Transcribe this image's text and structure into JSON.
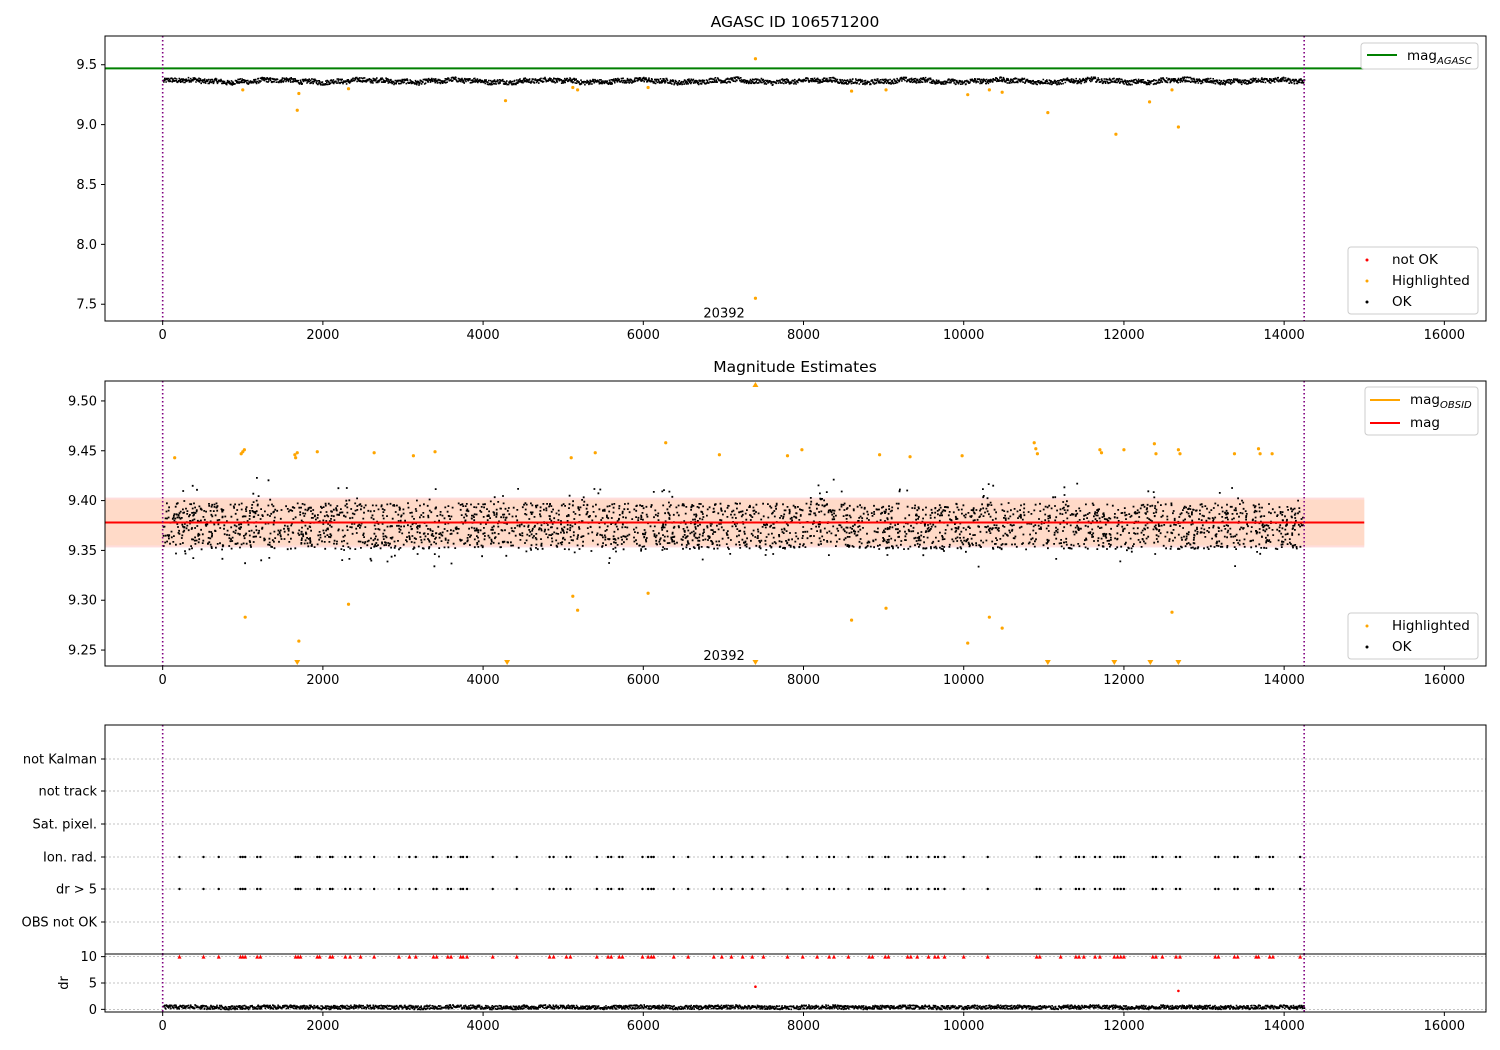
{
  "figure": {
    "panels": [
      "AGASC ID 106571200",
      "Magnitude Estimates",
      "",
      ""
    ]
  },
  "colors": {
    "ok": "#000000",
    "highlighted": "#ffa500",
    "not_ok": "#ff0000",
    "mag_agasc_line": "#008000",
    "mag_line": "#ff0000",
    "mag_obsid_line": "#ffa500",
    "band_outer": "#ffdddd",
    "band_inner": "#ffdac8",
    "obs_boundary": "#800080"
  },
  "chart_data": [
    {
      "type": "scatter",
      "title": "AGASC ID 106571200",
      "xlabel": "",
      "ylabel": "",
      "xlim": [
        -720,
        16520
      ],
      "ylim": [
        7.36,
        9.74
      ],
      "x_ticks": [
        "0",
        "2000",
        "4000",
        "6000",
        "8000",
        "10000",
        "12000",
        "14000",
        "16000"
      ],
      "y_ticks": [
        "7.5",
        "8.0",
        "8.5",
        "9.0",
        "9.5"
      ],
      "hlines": [
        {
          "name": "mag_AGASC",
          "y": 9.47,
          "x_range": [
            -720,
            15000
          ]
        }
      ],
      "obs_boundaries": [
        0,
        14250
      ],
      "annotations": [
        {
          "text": "20392",
          "x": 7150,
          "y": 7.43
        }
      ],
      "ok_band": {
        "center": 9.37,
        "half_width": 0.028,
        "x_range": [
          0,
          14250
        ]
      },
      "highlighted_points": {
        "x": [
          1000,
          1680,
          1700,
          2320,
          4280,
          5120,
          5180,
          6060,
          7400,
          7400,
          8600,
          9030,
          10050,
          10320,
          10480,
          11050,
          11900,
          12320,
          12600,
          12680
        ],
        "y": [
          9.29,
          9.12,
          9.26,
          9.3,
          9.2,
          9.31,
          9.29,
          9.31,
          9.55,
          7.55,
          9.28,
          9.29,
          9.25,
          9.29,
          9.27,
          9.1,
          8.92,
          9.19,
          9.29,
          8.98
        ]
      },
      "legend": {
        "position": "top-right + lower-right",
        "entries": [
          "mag_AGASC",
          "not OK",
          "Highlighted",
          "OK"
        ]
      },
      "grid": false
    },
    {
      "type": "scatter",
      "title": "Magnitude Estimates",
      "xlabel": "",
      "ylabel": "",
      "xlim": [
        -720,
        16520
      ],
      "ylim": [
        9.234,
        9.52
      ],
      "x_ticks": [
        "0",
        "2000",
        "4000",
        "6000",
        "8000",
        "10000",
        "12000",
        "14000",
        "16000"
      ],
      "y_ticks": [
        "9.25",
        "9.30",
        "9.35",
        "9.40",
        "9.45",
        "9.50"
      ],
      "mag": 9.378,
      "mag_band_outer": [
        9.353,
        9.403
      ],
      "mag_band_inner": [
        9.355,
        9.401
      ],
      "band_x_range": [
        -720,
        15000
      ],
      "obs_boundaries": [
        0,
        14250
      ],
      "annotations": [
        {
          "text": "20392",
          "x": 7150,
          "y": 9.245
        }
      ],
      "ok_band": {
        "center": 9.375,
        "half_width": 0.022,
        "x_range": [
          0,
          14250
        ]
      },
      "highlighted_points": {
        "x": [
          150,
          980,
          1000,
          1020,
          1650,
          1660,
          1680,
          1930,
          2640,
          3130,
          3400,
          5100,
          5400,
          6280,
          6950,
          7800,
          7980,
          8950,
          9330,
          9980,
          10880,
          10900,
          10920,
          11700,
          11720,
          12000,
          12380,
          12400,
          12680,
          12700,
          13380,
          13680,
          13700,
          13850,
          1030,
          1700,
          2320,
          5120,
          5180,
          6060,
          8600,
          9030,
          10050,
          10320,
          10480,
          12600
        ],
        "y": [
          9.443,
          9.447,
          9.449,
          9.451,
          9.446,
          9.443,
          9.448,
          9.449,
          9.448,
          9.445,
          9.449,
          9.443,
          9.448,
          9.458,
          9.446,
          9.445,
          9.451,
          9.446,
          9.444,
          9.445,
          9.458,
          9.452,
          9.447,
          9.451,
          9.448,
          9.451,
          9.457,
          9.447,
          9.451,
          9.447,
          9.447,
          9.452,
          9.447,
          9.447,
          9.283,
          9.259,
          9.296,
          9.304,
          9.29,
          9.307,
          9.28,
          9.292,
          9.257,
          9.283,
          9.272,
          9.288
        ]
      },
      "below_axis_markers_x": [
        1680,
        4300,
        7400,
        11050,
        11880,
        12330,
        12680
      ],
      "above_axis_markers_x": [
        7400
      ],
      "legend": {
        "position": "top-right + lower-right",
        "entries": [
          "mag_OBSID",
          "mag",
          "Highlighted",
          "OK"
        ]
      },
      "grid": false
    },
    {
      "type": "scatter",
      "title": "",
      "xlabel": "",
      "ylabel": "",
      "xlim": [
        -720,
        16520
      ],
      "categories": [
        "not Kalman",
        "not track",
        "Sat. pixel.",
        "Ion. rad.",
        "dr > 5",
        "OBS not OK"
      ],
      "obs_boundaries": [
        0,
        14250
      ],
      "flag_x": [
        210,
        510,
        700,
        970,
        1000,
        1030,
        1180,
        1220,
        1660,
        1690,
        1720,
        1930,
        1960,
        2090,
        2120,
        2280,
        2340,
        2470,
        2640,
        2950,
        3080,
        3160,
        3380,
        3420,
        3560,
        3600,
        3720,
        3750,
        3800,
        4120,
        4420,
        4830,
        4880,
        5040,
        5090,
        5420,
        5560,
        5600,
        5700,
        5740,
        5990,
        6060,
        6100,
        6130,
        6380,
        6560,
        6880,
        6980,
        7100,
        7240,
        7360,
        7500,
        7800,
        7990,
        8170,
        8320,
        8380,
        8560,
        8820,
        8860,
        9020,
        9060,
        9300,
        9340,
        9420,
        9560,
        9640,
        9680,
        9760,
        10000,
        10300,
        10910,
        10950,
        11210,
        11400,
        11440,
        11500,
        11640,
        11700,
        11880,
        11920,
        11960,
        12000,
        12360,
        12400,
        12480,
        12650,
        12700,
        13140,
        13180,
        13380,
        13420,
        13650,
        13680,
        13820,
        13860,
        14200
      ],
      "grid": true
    },
    {
      "type": "scatter",
      "title": "",
      "xlabel": "",
      "ylabel": "dr",
      "xlim": [
        -720,
        16520
      ],
      "ylim": [
        -0.5,
        10.5
      ],
      "x_ticks": [
        "0",
        "2000",
        "4000",
        "6000",
        "8000",
        "10000",
        "12000",
        "14000",
        "16000"
      ],
      "y_ticks": [
        "0",
        "5",
        "10"
      ],
      "clip_value": 10,
      "obs_boundaries": [
        0,
        14250
      ],
      "outliers": {
        "x": [
          7400,
          12680
        ],
        "y": [
          4.3,
          3.5
        ]
      },
      "ok_band": {
        "center": 0.55,
        "half_width": 0.45,
        "x_range": [
          0,
          14250
        ]
      },
      "grid": true
    }
  ]
}
